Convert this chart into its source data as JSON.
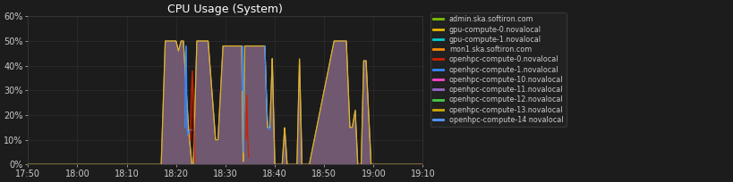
{
  "title": "CPU Usage (System)",
  "bg_color": "#1c1c1c",
  "plot_bg_color": "#1c1c1c",
  "grid_color": "#2e2e2e",
  "text_color": "#cccccc",
  "title_color": "#ffffff",
  "xlim_minutes": [
    0,
    80
  ],
  "ylim": [
    0,
    60
  ],
  "yticks": [
    0,
    10,
    20,
    30,
    40,
    50,
    60
  ],
  "ytick_labels": [
    "0%",
    "10%",
    "20%",
    "30%",
    "40%",
    "50%",
    "60%"
  ],
  "xtick_positions": [
    0,
    10,
    20,
    30,
    40,
    50,
    60,
    70,
    80
  ],
  "xtick_labels": [
    "17:50",
    "18:00",
    "18:10",
    "18:20",
    "18:30",
    "18:40",
    "18:50",
    "19:00",
    "19:10"
  ],
  "legend_entries": [
    {
      "label": "admin.ska.softiron.com",
      "color": "#7fbf00"
    },
    {
      "label": "gpu-compute-0.novalocal",
      "color": "#e6b800"
    },
    {
      "label": "gpu-compute-1.novalocal",
      "color": "#00cfcf"
    },
    {
      "label": "mon1.ska.softiron.com",
      "color": "#ff8c00"
    },
    {
      "label": "openhpc-compute-0.novalocal",
      "color": "#cc2200"
    },
    {
      "label": "openhpc-compute-1.novalocal",
      "color": "#3388ff"
    },
    {
      "label": "openhpc-compute-10.novalocal",
      "color": "#ff44cc"
    },
    {
      "label": "openhpc-compute-11.novalocal",
      "color": "#9966cc"
    },
    {
      "label": "openhpc-compute-12.novalocal",
      "color": "#44cc44"
    },
    {
      "label": "openhpc-compute-13.novalocal",
      "color": "#ccaa00"
    },
    {
      "label": "openhpc-compute-14 novalocal",
      "color": "#5599ff"
    }
  ],
  "main_fill_color": "#7a5f7a",
  "main_line_color": "#c8a8c8",
  "yellow_line_color": "#e6b800",
  "blue_spike_color": "#3388ff",
  "red_spike_color": "#cc2200"
}
